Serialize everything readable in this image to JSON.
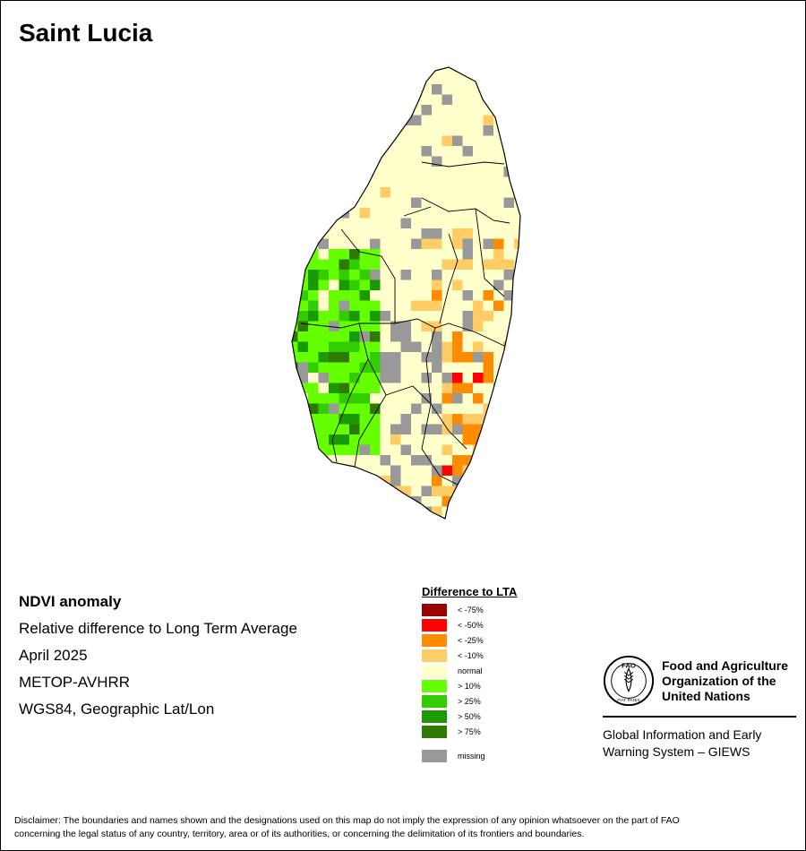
{
  "map_title": "Saint Lucia",
  "info": {
    "product": "NDVI anomaly",
    "description": "Relative difference to Long Term Average",
    "period": "April 2025",
    "sensor": "METOP-AVHRR",
    "projection": "WGS84, Geographic Lat/Lon"
  },
  "legend": {
    "title": "Difference to LTA",
    "items": [
      {
        "label": "< -75%",
        "color": "#990000"
      },
      {
        "label": "< -50%",
        "color": "#ff0000"
      },
      {
        "label": "< -25%",
        "color": "#ff8c00"
      },
      {
        "label": "< -10%",
        "color": "#ffcc66"
      },
      {
        "label": "normal",
        "color": "#ffffcc"
      },
      {
        "label": "> 10%",
        "color": "#66ff00"
      },
      {
        "label": "> 25%",
        "color": "#33cc00"
      },
      {
        "label": "> 50%",
        "color": "#1a9900"
      },
      {
        "label": "> 75%",
        "color": "#2e7a00"
      }
    ],
    "missing": {
      "label": "missing",
      "color": "#999999"
    }
  },
  "organization": {
    "name_line1": "Food and Agriculture",
    "name_line2": "Organization of the",
    "name_line3": "United Nations",
    "emblem_letters": "FAO",
    "emblem_motto": "FIAT PANIS",
    "system_line1": "Global Information and Early",
    "system_line2": "Warning System – GIEWS"
  },
  "disclaimer_line1": "Disclaimer: The boundaries and names shown and the designations used on this map do not imply the expression of any opinion whatsoever on the part of FAO",
  "disclaimer_line2": "concerning the legal status of any country, territory, area or of its authorities, or concerning the delimitation of its frontiers and boundaries."
}
